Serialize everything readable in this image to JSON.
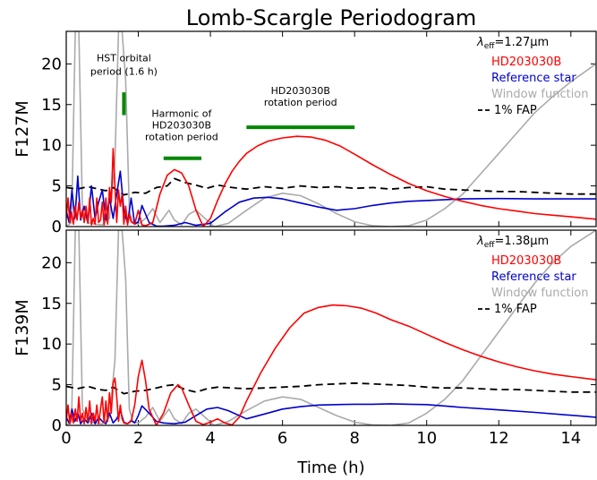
{
  "chart_data": {
    "type": "line",
    "title": "Lomb-Scargle Periodogram",
    "xlabel": "Time (h)",
    "xlim": [
      0,
      14.7
    ],
    "xticks": [
      0,
      2,
      4,
      6,
      8,
      10,
      12,
      14
    ],
    "ylim": [
      0,
      24
    ],
    "yticks": [
      0,
      5,
      10,
      15,
      20
    ],
    "colors": {
      "target": "#ff0000",
      "reference": "#0000cc",
      "window": "#aaaaaa",
      "fap": "#000000",
      "marker": "#008800"
    },
    "panels": [
      {
        "ylabel": "F127M",
        "legend": {
          "lambda_symbol": "λ",
          "lambda_sub": "eff",
          "lambda_value": "=1.27μm",
          "entries": [
            "HD203030B",
            "Reference star",
            "Window function",
            "1% FAP"
          ]
        },
        "annotations": [
          {
            "lines": [
              "HST orbital",
              "period (1.6 h)"
            ]
          },
          {
            "lines": [
              "Harmonic of",
              "HD203030B",
              "rotation period"
            ]
          },
          {
            "lines": [
              "HD203030B",
              "rotation period"
            ]
          }
        ],
        "markers": [
          {
            "x": [
              1.6,
              1.6
            ],
            "y": [
              13.7,
              16.5
            ]
          },
          {
            "x": [
              2.7,
              3.75
            ],
            "y": [
              8.4,
              8.4
            ]
          },
          {
            "x": [
              5.0,
              8.0
            ],
            "y": [
              12.2,
              12.2
            ]
          }
        ],
        "series": [
          {
            "key": "window",
            "x": [
              0.0,
              0.15,
              0.25,
              0.35,
              0.45,
              0.6,
              0.8,
              1.0,
              1.2,
              1.35,
              1.45,
              1.55,
              1.65,
              1.75,
              1.85,
              2.0,
              2.2,
              2.4,
              2.6,
              2.85,
              3.0,
              3.2,
              3.4,
              3.6,
              3.85,
              4.1,
              4.5,
              5.0,
              5.5,
              6.0,
              6.5,
              7.0,
              7.5,
              8.0,
              8.5,
              9.0,
              9.5,
              10.0,
              10.5,
              11.0,
              11.5,
              12.0,
              12.5,
              13.0,
              13.5,
              14.0,
              14.7
            ],
            "y": [
              0,
              0.5,
              24,
              24,
              2,
              0.5,
              0.3,
              0.2,
              1,
              8,
              24,
              24,
              18,
              2,
              0.5,
              0.3,
              1,
              2.2,
              0.5,
              2.0,
              0.8,
              0.2,
              1.5,
              2.0,
              1,
              0,
              0.4,
              2.0,
              3.5,
              4.1,
              3.8,
              2.8,
              1.6,
              0.6,
              0.1,
              0,
              0.1,
              0.8,
              2.2,
              4.0,
              6.5,
              9.0,
              11.5,
              14.0,
              16.0,
              17.8,
              20.0
            ]
          },
          {
            "key": "fap",
            "x": [
              0.0,
              0.3,
              0.6,
              0.9,
              1.1,
              1.3,
              1.6,
              1.9,
              2.2,
              2.5,
              2.8,
              3.0,
              3.3,
              3.6,
              3.9,
              4.2,
              4.6,
              5.0,
              5.5,
              6.0,
              6.5,
              7.0,
              7.5,
              8.0,
              8.5,
              9.0,
              9.5,
              10.0,
              10.5,
              11.0,
              11.5,
              12.0,
              12.5,
              13.0,
              13.5,
              14.0,
              14.7
            ],
            "y": [
              4.8,
              4.6,
              4.9,
              4.6,
              4.4,
              4.8,
              3.9,
              4.2,
              4.1,
              4.8,
              5.0,
              5.9,
              5.4,
              5.1,
              4.7,
              5.1,
              4.8,
              4.6,
              4.9,
              4.7,
              5.0,
              4.8,
              4.9,
              4.7,
              4.8,
              4.6,
              4.8,
              4.9,
              4.6,
              4.5,
              4.4,
              4.3,
              4.3,
              4.2,
              4.1,
              4.0,
              4.0
            ]
          },
          {
            "key": "reference",
            "x": [
              0.0,
              0.08,
              0.16,
              0.24,
              0.32,
              0.4,
              0.5,
              0.6,
              0.7,
              0.8,
              0.9,
              1.0,
              1.1,
              1.2,
              1.3,
              1.4,
              1.5,
              1.6,
              1.7,
              1.8,
              1.9,
              2.0,
              2.1,
              2.3,
              2.5,
              2.7,
              3.0,
              3.3,
              3.6,
              4.0,
              4.4,
              4.8,
              5.2,
              5.6,
              6.0,
              6.5,
              7.0,
              7.5,
              8.0,
              8.5,
              9.0,
              9.5,
              10.0,
              11.0,
              12.0,
              13.0,
              14.7
            ],
            "y": [
              2,
              0.5,
              4.5,
              1,
              6.2,
              0.8,
              2.5,
              0.5,
              5.0,
              1,
              3.0,
              4.5,
              0.8,
              3.5,
              1.0,
              4.0,
              6.8,
              2.0,
              0.4,
              3.5,
              0.3,
              0.6,
              2.6,
              0.5,
              0.05,
              0.05,
              0.15,
              0.5,
              0.15,
              0.4,
              1.8,
              3.0,
              3.5,
              3.6,
              3.4,
              2.9,
              2.4,
              2.0,
              2.2,
              2.6,
              2.9,
              3.1,
              3.2,
              3.4,
              3.45,
              3.4,
              3.4
            ]
          },
          {
            "key": "target",
            "x": [
              0.0,
              0.05,
              0.1,
              0.15,
              0.2,
              0.25,
              0.3,
              0.35,
              0.4,
              0.45,
              0.5,
              0.55,
              0.6,
              0.65,
              0.7,
              0.75,
              0.8,
              0.85,
              0.9,
              0.95,
              1.0,
              1.05,
              1.1,
              1.15,
              1.2,
              1.25,
              1.3,
              1.35,
              1.4,
              1.45,
              1.5,
              1.55,
              1.6,
              1.65,
              1.7,
              1.75,
              1.8,
              1.9,
              2.0,
              2.1,
              2.2,
              2.4,
              2.6,
              2.8,
              3.0,
              3.2,
              3.4,
              3.6,
              3.8,
              4.0,
              4.2,
              4.4,
              4.6,
              4.8,
              5.0,
              5.3,
              5.6,
              6.0,
              6.4,
              6.8,
              7.2,
              7.6,
              8.0,
              8.5,
              9.0,
              9.5,
              10.0,
              10.5,
              11.0,
              11.5,
              12.0,
              12.5,
              13.0,
              13.5,
              14.0,
              14.7
            ],
            "y": [
              1,
              3.5,
              0.5,
              1.8,
              0.3,
              2.5,
              0.8,
              3.0,
              1.0,
              2.0,
              0.5,
              2.5,
              0.4,
              3.5,
              0.2,
              1.0,
              0.3,
              3.5,
              0.5,
              0.8,
              3.0,
              0.2,
              3.5,
              0.3,
              4.8,
              3.0,
              9.6,
              5.0,
              0.5,
              4.5,
              2.5,
              4.0,
              0.3,
              2.5,
              0.2,
              1.5,
              0.6,
              0.3,
              2.0,
              0.2,
              0.1,
              0.5,
              4.0,
              6.3,
              7.0,
              6.6,
              5.0,
              2.0,
              0.0,
              1.0,
              3.2,
              5.2,
              6.8,
              8.0,
              9.0,
              9.9,
              10.5,
              10.9,
              11.1,
              11.0,
              10.6,
              9.9,
              8.9,
              7.6,
              6.4,
              5.3,
              4.4,
              3.7,
              3.1,
              2.6,
              2.2,
              1.9,
              1.6,
              1.4,
              1.2,
              0.9
            ]
          }
        ]
      },
      {
        "ylabel": "F139M",
        "legend": {
          "lambda_symbol": "λ",
          "lambda_sub": "eff",
          "lambda_value": "=1.38μm",
          "entries": [
            "HD203030B",
            "Reference star",
            "Window function",
            "1% FAP"
          ]
        },
        "series": [
          {
            "key": "window",
            "x": [
              0.0,
              0.15,
              0.25,
              0.35,
              0.45,
              0.6,
              0.8,
              1.0,
              1.2,
              1.35,
              1.45,
              1.55,
              1.65,
              1.75,
              1.85,
              2.0,
              2.2,
              2.4,
              2.6,
              2.85,
              3.0,
              3.2,
              3.4,
              3.6,
              3.85,
              4.1,
              4.5,
              5.0,
              5.5,
              6.0,
              6.5,
              7.0,
              7.5,
              8.0,
              8.5,
              9.0,
              9.5,
              10.0,
              10.5,
              11.0,
              11.5,
              12.0,
              12.5,
              13.0,
              13.5,
              14.0,
              14.7
            ],
            "y": [
              0,
              0.5,
              24,
              24,
              2,
              0.5,
              0.3,
              0.2,
              1,
              8,
              24,
              24,
              18,
              2,
              0.5,
              0.3,
              1,
              2.2,
              0.5,
              2.0,
              0.8,
              0.2,
              1.5,
              2.0,
              1,
              0,
              0.5,
              1.8,
              3.0,
              3.5,
              3.2,
              2.2,
              1.2,
              0.4,
              0.05,
              0,
              0.3,
              1.5,
              3.2,
              5.5,
              8.5,
              11.5,
              14.5,
              17.5,
              20.0,
              22.0,
              24.0
            ]
          },
          {
            "key": "fap",
            "x": [
              0.0,
              0.3,
              0.6,
              0.9,
              1.1,
              1.3,
              1.6,
              1.9,
              2.2,
              2.5,
              2.8,
              3.0,
              3.3,
              3.6,
              3.9,
              4.2,
              4.6,
              5.0,
              5.5,
              6.0,
              6.5,
              7.0,
              7.5,
              8.0,
              8.5,
              9.0,
              9.5,
              10.0,
              10.5,
              11.0,
              11.5,
              12.0,
              12.5,
              13.0,
              13.5,
              14.0,
              14.7
            ],
            "y": [
              4.8,
              4.5,
              4.8,
              4.4,
              4.3,
              4.7,
              3.9,
              4.2,
              4.3,
              4.6,
              4.9,
              5.0,
              4.4,
              4.1,
              4.5,
              4.7,
              4.6,
              4.5,
              4.6,
              4.7,
              4.8,
              5.0,
              5.1,
              5.2,
              5.1,
              5.0,
              4.9,
              4.7,
              4.6,
              4.6,
              4.5,
              4.4,
              4.4,
              4.3,
              4.2,
              4.1,
              4.1
            ]
          },
          {
            "key": "reference",
            "x": [
              0.0,
              0.08,
              0.16,
              0.24,
              0.32,
              0.4,
              0.5,
              0.6,
              0.7,
              0.8,
              0.9,
              1.0,
              1.1,
              1.2,
              1.3,
              1.4,
              1.5,
              1.6,
              1.7,
              1.8,
              1.9,
              2.0,
              2.1,
              2.3,
              2.5,
              2.7,
              3.0,
              3.3,
              3.6,
              3.9,
              4.2,
              4.5,
              5.0,
              5.5,
              6.0,
              6.5,
              7.0,
              7.5,
              8.0,
              8.5,
              9.0,
              9.5,
              10.0,
              11.0,
              12.0,
              13.0,
              14.7
            ],
            "y": [
              1,
              0.3,
              2.0,
              0.5,
              1.5,
              0.2,
              0.8,
              0.3,
              1.5,
              0.2,
              1.0,
              0.5,
              0.2,
              1.5,
              0.3,
              0.8,
              1.8,
              0.4,
              0.2,
              0.6,
              0.3,
              1.2,
              2.4,
              1.5,
              0.5,
              0.3,
              0.2,
              0.4,
              1.2,
              2.0,
              2.2,
              1.8,
              0.8,
              1.4,
              2.0,
              2.3,
              2.5,
              2.55,
              2.6,
              2.6,
              2.65,
              2.6,
              2.55,
              2.2,
              1.9,
              1.6,
              1.0
            ]
          },
          {
            "key": "target",
            "x": [
              0.0,
              0.05,
              0.1,
              0.15,
              0.2,
              0.25,
              0.3,
              0.35,
              0.4,
              0.45,
              0.5,
              0.55,
              0.6,
              0.65,
              0.7,
              0.75,
              0.8,
              0.85,
              0.9,
              0.95,
              1.0,
              1.05,
              1.1,
              1.15,
              1.2,
              1.25,
              1.3,
              1.35,
              1.4,
              1.45,
              1.5,
              1.55,
              1.6,
              1.7,
              1.8,
              1.9,
              2.0,
              2.1,
              2.2,
              2.3,
              2.5,
              2.7,
              2.9,
              3.1,
              3.2,
              3.4,
              3.6,
              3.8,
              4.0,
              4.2,
              4.4,
              4.6,
              4.8,
              5.0,
              5.4,
              5.8,
              6.2,
              6.6,
              7.0,
              7.4,
              7.8,
              8.2,
              8.6,
              9.0,
              9.5,
              10.0,
              10.5,
              11.0,
              11.5,
              12.0,
              12.5,
              13.0,
              13.5,
              14.0,
              14.7
            ],
            "y": [
              0.5,
              2.5,
              0.2,
              1.5,
              0.3,
              2.0,
              0.5,
              3.5,
              0.5,
              1.5,
              0.2,
              2.2,
              0.5,
              3.0,
              0.2,
              1.5,
              0.5,
              2.5,
              0.2,
              2.0,
              3.5,
              0.3,
              3.0,
              0.5,
              4.0,
              1.5,
              5.2,
              5.8,
              3.5,
              0.5,
              2.5,
              0.8,
              0.3,
              0.2,
              0.5,
              2.5,
              6.0,
              8.0,
              5.5,
              2.0,
              0.0,
              1.5,
              4.0,
              5.0,
              4.6,
              2.5,
              0.5,
              0.1,
              0.4,
              0.8,
              0.3,
              0.05,
              1.0,
              3.0,
              6.5,
              9.5,
              12.0,
              13.8,
              14.5,
              14.8,
              14.7,
              14.4,
              13.8,
              13.0,
              12.2,
              11.2,
              10.2,
              9.3,
              8.5,
              7.8,
              7.2,
              6.7,
              6.3,
              6.0,
              5.6
            ]
          }
        ]
      }
    ]
  }
}
